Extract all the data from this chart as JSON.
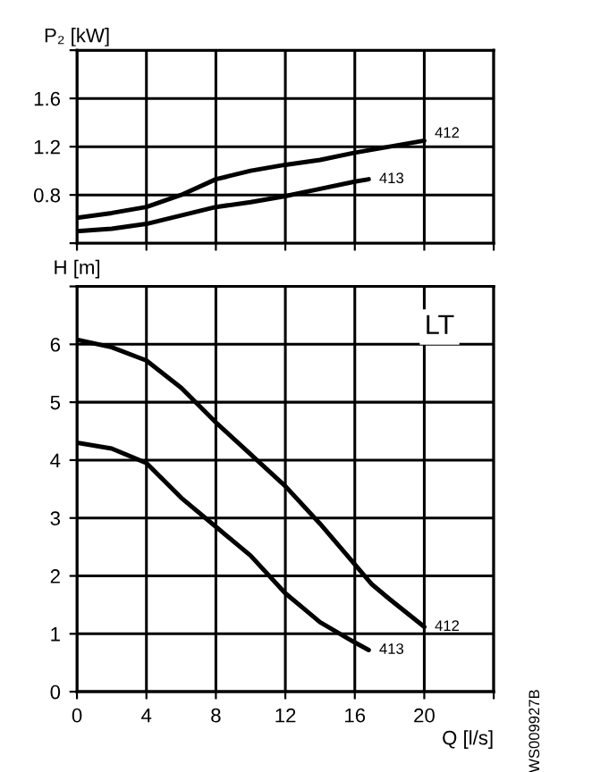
{
  "chart_data": [
    {
      "type": "line",
      "ylabel": "P₂ [kW]",
      "xlim": [
        0,
        24
      ],
      "xticks": [
        0,
        4,
        8,
        12,
        16,
        20,
        24
      ],
      "ylim": [
        0.4,
        2.0
      ],
      "yticks": [
        {
          "value": 0.4,
          "label": null
        },
        0.8,
        1.2,
        1.6,
        {
          "value": 2.0,
          "label": null
        }
      ],
      "grid": true,
      "tick_labels": "y",
      "legend": false,
      "series": [
        {
          "name": "412",
          "color": "#000000",
          "x": [
            0,
            2,
            4,
            6,
            8,
            10,
            12,
            14,
            16,
            18,
            20
          ],
          "values": [
            0.61,
            0.65,
            0.7,
            0.8,
            0.93,
            1.0,
            1.05,
            1.09,
            1.15,
            1.2,
            1.25
          ]
        },
        {
          "name": "413",
          "color": "#000000",
          "x": [
            0,
            2,
            4,
            6,
            8,
            10,
            12,
            14,
            16,
            16.8
          ],
          "values": [
            0.5,
            0.52,
            0.56,
            0.63,
            0.7,
            0.74,
            0.79,
            0.85,
            0.91,
            0.93
          ]
        }
      ]
    },
    {
      "type": "line",
      "ylabel": "H [m]",
      "xlabel": "Q [l/s]",
      "xlim": [
        0,
        24
      ],
      "xticks": [
        0,
        4,
        8,
        12,
        16,
        20,
        {
          "value": 24,
          "label": null
        }
      ],
      "ylim": [
        0,
        7
      ],
      "yticks": [
        0,
        1,
        2,
        3,
        4,
        5,
        6,
        {
          "value": 7,
          "label": null
        }
      ],
      "grid": true,
      "legend": false,
      "annotations": [
        "LT",
        "WS009927B"
      ],
      "series": [
        {
          "name": "412",
          "color": "#000000",
          "x": [
            0,
            2,
            4,
            6,
            8,
            10,
            12,
            14,
            16,
            17,
            18,
            20
          ],
          "values": [
            6.08,
            5.95,
            5.72,
            5.25,
            4.65,
            4.1,
            3.55,
            2.9,
            2.2,
            1.85,
            1.6,
            1.12
          ]
        },
        {
          "name": "413",
          "color": "#000000",
          "x": [
            0,
            2,
            4,
            6,
            8,
            10,
            12,
            13,
            14,
            16,
            16.8
          ],
          "values": [
            4.3,
            4.2,
            3.95,
            3.35,
            2.85,
            2.35,
            1.7,
            1.45,
            1.2,
            0.85,
            0.72
          ]
        }
      ]
    }
  ]
}
